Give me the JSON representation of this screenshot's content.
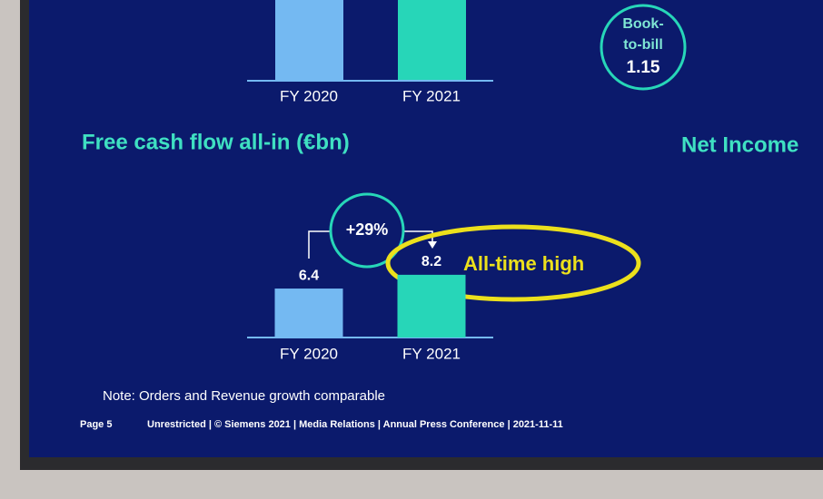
{
  "chart_data": {
    "type": "bar",
    "title": "Free cash flow all-in (€bn)",
    "categories": [
      "FY 2020",
      "FY 2021"
    ],
    "series": [
      {
        "values": [
          6.4,
          8.2
        ],
        "colors": [
          "#74b9f2",
          "#27d6b8"
        ]
      }
    ],
    "annotations": {
      "growth": "+29%",
      "highlight": "All-time high"
    }
  },
  "top_chart": {
    "categories": [
      "FY 2020",
      "FY 2021"
    ]
  },
  "book_to_bill": {
    "label_lines": [
      "Book-",
      "to-bill"
    ],
    "value": "1.15"
  },
  "side_heading": "Net Income",
  "note": "Note: Orders and Revenue growth comparable",
  "footer": {
    "page": "Page 5",
    "text": "Unrestricted | © Siemens 2021 | Media Relations | Annual Press Conference | 2021-11-11"
  }
}
